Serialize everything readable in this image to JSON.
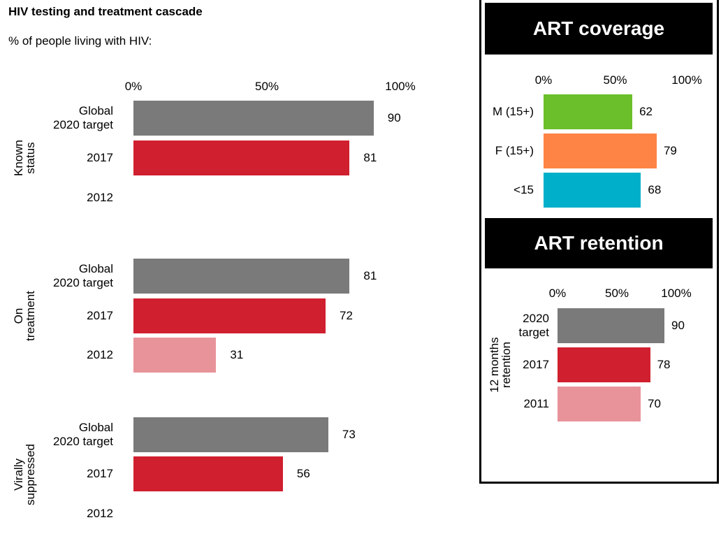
{
  "chart_data": [
    {
      "type": "grouped-bar",
      "orientation": "horizontal",
      "title": "HIV testing and treatment cascade",
      "subtitle": "% of people living with HIV:",
      "categories": [
        "Global 2020 target",
        "2017",
        "2012"
      ],
      "colors": [
        "#7a7a7a",
        "#d01f2e",
        "#e8939a"
      ],
      "groups": [
        {
          "name": "Known status",
          "values": [
            90,
            81,
            null
          ]
        },
        {
          "name": "On treatment",
          "values": [
            81,
            72,
            31
          ]
        },
        {
          "name": "Virally suppressed",
          "values": [
            73,
            56,
            null
          ]
        }
      ],
      "xlim": [
        0,
        100
      ],
      "xticks": [
        {
          "value": 0,
          "label": "0%"
        },
        {
          "value": 50,
          "label": "50%"
        },
        {
          "value": 100,
          "label": "100%"
        }
      ]
    },
    {
      "type": "bar",
      "orientation": "horizontal",
      "title": "ART coverage",
      "categories": [
        "M (15+)",
        "F (15+)",
        "<15"
      ],
      "values": [
        62,
        79,
        68
      ],
      "colors": [
        "#6abf2a",
        "#fd8445",
        "#00afca"
      ],
      "xlim": [
        0,
        100
      ],
      "xticks": [
        {
          "value": 0,
          "label": "0%"
        },
        {
          "value": 50,
          "label": "50%"
        },
        {
          "value": 100,
          "label": "100%"
        }
      ]
    },
    {
      "type": "bar",
      "orientation": "horizontal",
      "title": "ART retention",
      "group": "12 months retention",
      "categories": [
        "2020 target",
        "2017",
        "2011"
      ],
      "values": [
        90,
        78,
        70
      ],
      "colors": [
        "#7a7a7a",
        "#d01f2e",
        "#e8939a"
      ],
      "xlim": [
        0,
        100
      ],
      "xticks": [
        {
          "value": 0,
          "label": "0%"
        },
        {
          "value": 50,
          "label": "50%"
        },
        {
          "value": 100,
          "label": "100%"
        }
      ]
    }
  ]
}
